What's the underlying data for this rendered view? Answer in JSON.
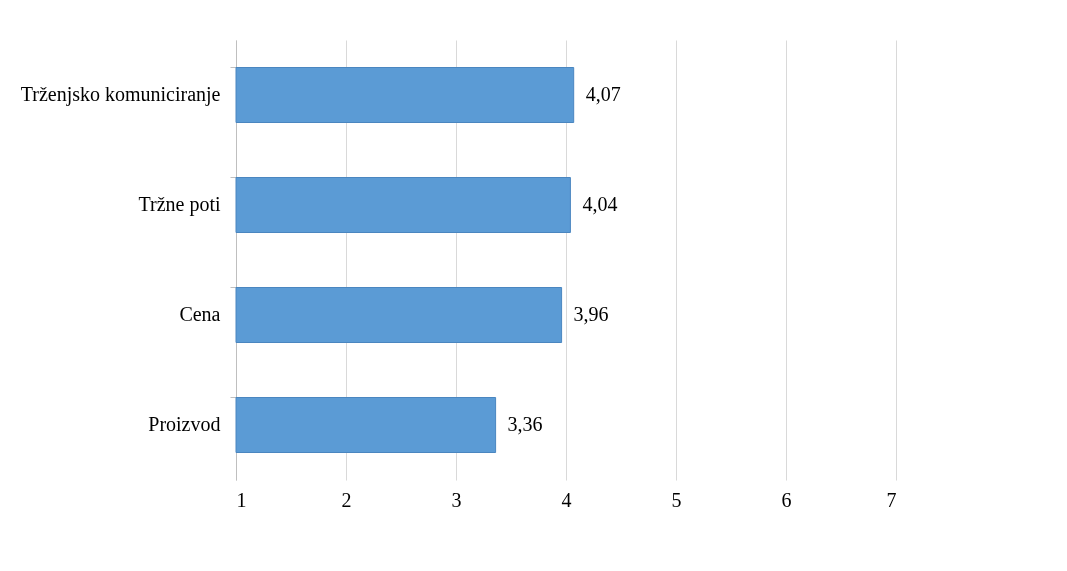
{
  "chart_data": {
    "type": "bar",
    "orientation": "horizontal",
    "categories": [
      "Trženjsko komuniciranje",
      "Tržne poti",
      "Cena",
      "Proizvod"
    ],
    "values": [
      4.07,
      4.04,
      3.96,
      3.36
    ],
    "value_labels": [
      "4,07",
      "4,04",
      "3,96",
      "3,36"
    ],
    "color": "#5b9bd5",
    "xlim": [
      1,
      7
    ],
    "xticks": [
      1,
      2,
      3,
      4,
      5,
      6,
      7
    ],
    "grid": "x"
  }
}
